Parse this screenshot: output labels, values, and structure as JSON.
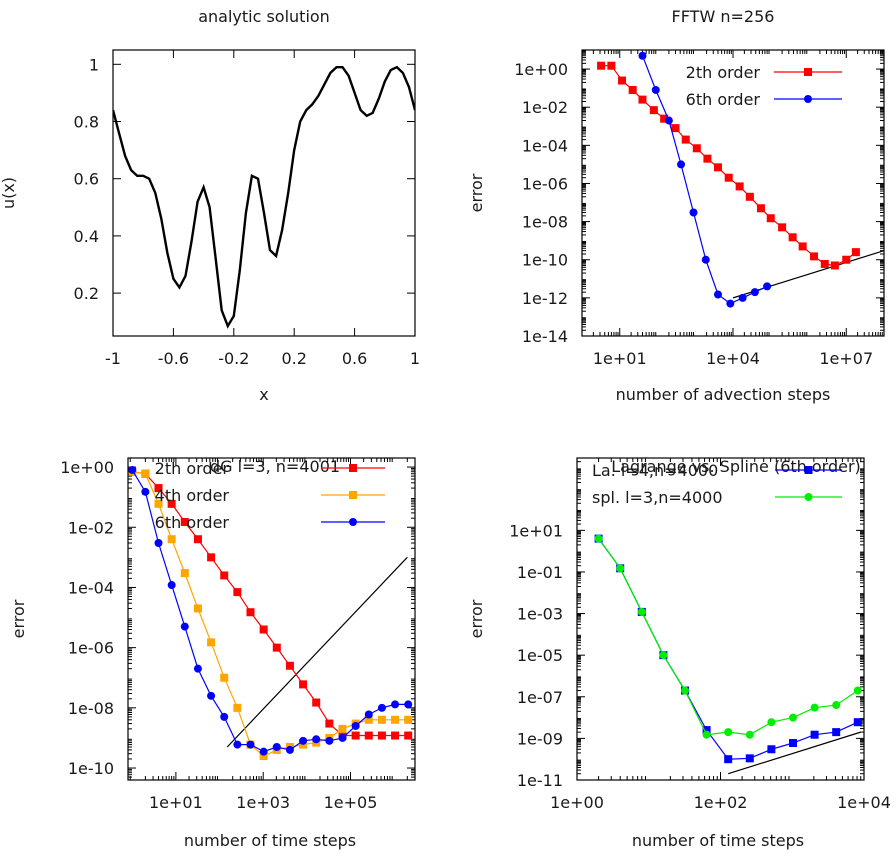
{
  "chart_data": [
    {
      "type": "line",
      "title": "analytic solution",
      "xlabel": "x",
      "ylabel": "u(x)",
      "xlim": [
        -1,
        1
      ],
      "ylim": [
        0.05,
        1.05
      ],
      "x_ticks": [
        -1,
        -0.6,
        -0.2,
        0.2,
        0.6,
        1
      ],
      "x_tick_labels": [
        "-1",
        "-0.6",
        "-0.2",
        "0.2",
        "0.6",
        "1"
      ],
      "y_ticks": [
        0.2,
        0.4,
        0.6,
        0.8,
        1
      ],
      "y_tick_labels": [
        "0.2",
        "0.4",
        "0.6",
        "0.8",
        "1"
      ],
      "series": [
        {
          "color": "#000000",
          "marker": "none",
          "x": [
            -1,
            -0.96,
            -0.92,
            -0.88,
            -0.84,
            -0.8,
            -0.76,
            -0.72,
            -0.68,
            -0.64,
            -0.6,
            -0.56,
            -0.52,
            -0.48,
            -0.44,
            -0.4,
            -0.36,
            -0.32,
            -0.28,
            -0.24,
            -0.2,
            -0.16,
            -0.12,
            -0.08,
            -0.04,
            0,
            0.04,
            0.08,
            0.12,
            0.16,
            0.2,
            0.24,
            0.28,
            0.32,
            0.36,
            0.4,
            0.44,
            0.48,
            0.52,
            0.56,
            0.6,
            0.64,
            0.68,
            0.72,
            0.76,
            0.8,
            0.84,
            0.88,
            0.92,
            0.96,
            1
          ],
          "y": [
            0.84,
            0.76,
            0.68,
            0.63,
            0.61,
            0.61,
            0.6,
            0.55,
            0.46,
            0.34,
            0.25,
            0.22,
            0.26,
            0.38,
            0.52,
            0.57,
            0.5,
            0.32,
            0.14,
            0.085,
            0.12,
            0.28,
            0.48,
            0.61,
            0.6,
            0.48,
            0.35,
            0.33,
            0.42,
            0.55,
            0.7,
            0.8,
            0.84,
            0.86,
            0.89,
            0.93,
            0.97,
            0.99,
            0.99,
            0.96,
            0.9,
            0.84,
            0.82,
            0.83,
            0.88,
            0.94,
            0.98,
            0.99,
            0.97,
            0.92,
            0.84
          ]
        }
      ]
    },
    {
      "type": "line",
      "title": "FFTW n=256",
      "xlabel": "number of advection steps",
      "ylabel": "error",
      "x_scale": "log",
      "y_scale": "log",
      "xlim": [
        1,
        100000000
      ],
      "ylim": [
        1e-14,
        10
      ],
      "x_ticks": [
        10,
        10000,
        10000000
      ],
      "x_tick_labels": [
        "1e+01",
        "1e+04",
        "1e+07"
      ],
      "y_ticks": [
        1,
        0.01,
        0.0001,
        1e-06,
        1e-08,
        1e-10,
        1e-12,
        1e-14
      ],
      "y_tick_labels": [
        "1e+00",
        "1e-02",
        "1e-04",
        "1e-06",
        "1e-08",
        "1e-10",
        "1e-12",
        "1e-14"
      ],
      "legend_position": "top-right",
      "series": [
        {
          "name": "2th order",
          "color": "#ff0000",
          "marker": "square",
          "x": [
            3.2,
            6,
            11.5,
            22,
            40,
            80,
            150,
            300,
            560,
            1100,
            2100,
            4000,
            7700,
            15000,
            28000,
            55000,
            100000,
            200000,
            380000,
            700000,
            1400000,
            2700000,
            5000000,
            10000000,
            18000000
          ],
          "y": [
            1.5,
            1.5,
            0.25,
            0.08,
            0.025,
            0.007,
            0.0025,
            0.0008,
            0.0002,
            7e-05,
            2e-05,
            7e-06,
            2e-06,
            7e-07,
            2e-07,
            5e-08,
            1.5e-08,
            5e-09,
            1.5e-09,
            5e-10,
            1.5e-10,
            6e-11,
            5e-11,
            1e-10,
            2.5e-10
          ]
        },
        {
          "name": "6th order",
          "color": "#0000ff",
          "marker": "circle",
          "x": [
            40,
            90,
            200,
            420,
            900,
            1900,
            4000,
            8500,
            18000,
            38000,
            80000
          ],
          "y": [
            5,
            0.08,
            0.002,
            1e-05,
            3e-08,
            1e-10,
            1.5e-12,
            5e-13,
            1e-12,
            2e-12,
            4e-12
          ]
        }
      ],
      "reference_line": {
        "color": "#000000",
        "x": [
          10000,
          100000000
        ],
        "y": [
          1e-12,
          3e-10
        ]
      }
    },
    {
      "type": "line",
      "title": "dG l=3, n=4001",
      "xlabel": "number of time steps",
      "ylabel": "error",
      "x_scale": "log",
      "y_scale": "log",
      "xlim": [
        0.8,
        3000000
      ],
      "ylim": [
        4e-11,
        2
      ],
      "x_ticks": [
        10,
        1000,
        100000
      ],
      "x_tick_labels": [
        "1e+01",
        "1e+03",
        "1e+05"
      ],
      "y_ticks": [
        1,
        0.01,
        0.0001,
        1e-06,
        1e-08,
        1e-10
      ],
      "y_tick_labels": [
        "1e+00",
        "1e-02",
        "1e-04",
        "1e-06",
        "1e-08",
        "1e-10"
      ],
      "legend_position": "top-right",
      "series": [
        {
          "name": "2th order",
          "color": "#ff0000",
          "marker": "square",
          "x": [
            1,
            2,
            4,
            8,
            16,
            32,
            64,
            128,
            256,
            512,
            1024,
            2048,
            4096,
            8192,
            16384,
            32768,
            65536,
            131072,
            262144,
            524288,
            1048576,
            2097152
          ],
          "y": [
            0.7,
            0.6,
            0.2,
            0.06,
            0.015,
            0.004,
            0.001,
            0.00025,
            7e-05,
            1.5e-05,
            4e-06,
            1e-06,
            2.5e-07,
            6e-08,
            1.5e-08,
            3e-09,
            1.2e-09,
            1.2e-09,
            1.2e-09,
            1.2e-09,
            1.2e-09,
            1.2e-09
          ]
        },
        {
          "name": "4th order",
          "color": "#ffa500",
          "marker": "square",
          "x": [
            1,
            2,
            4,
            8,
            16,
            32,
            64,
            128,
            256,
            512,
            1024,
            2048,
            4096,
            8192,
            16384,
            32768,
            65536,
            131072,
            262144,
            524288,
            1048576,
            2097152
          ],
          "y": [
            0.7,
            0.6,
            0.06,
            0.004,
            0.0003,
            2e-05,
            1.5e-06,
            1e-07,
            1e-08,
            6e-10,
            2.5e-10,
            4e-10,
            5e-10,
            6e-10,
            7e-10,
            1e-09,
            2e-09,
            3e-09,
            4e-09,
            4e-09,
            4e-09,
            4e-09
          ]
        },
        {
          "name": "6th order",
          "color": "#0000ff",
          "marker": "circle",
          "x": [
            1,
            2,
            4,
            8,
            16,
            32,
            64,
            128,
            256,
            512,
            1024,
            2048,
            4096,
            8192,
            16384,
            32768,
            65536,
            131072,
            262144,
            524288,
            1048576,
            2097152
          ],
          "y": [
            0.8,
            0.15,
            0.003,
            0.00012,
            5e-06,
            2e-07,
            2.5e-08,
            5e-09,
            6e-10,
            6e-10,
            3.5e-10,
            5e-10,
            4e-10,
            8e-10,
            9e-10,
            8e-10,
            1e-09,
            2.5e-09,
            6e-09,
            1e-08,
            1.3e-08,
            1.3e-08
          ]
        }
      ],
      "reference_line": {
        "color": "#000000",
        "x": [
          150,
          2000000
        ],
        "y": [
          5e-10,
          0.001
        ]
      }
    },
    {
      "type": "line",
      "title": "Lagrange vs. Spline (6th order)",
      "xlabel": "number of time steps",
      "ylabel": "error",
      "x_scale": "log",
      "y_scale": "log",
      "xlim": [
        1,
        10000
      ],
      "ylim": [
        1e-11,
        30000
      ],
      "x_ticks": [
        1,
        100,
        10000
      ],
      "x_tick_labels": [
        "1e+00",
        "1e+02",
        "1e+04"
      ],
      "y_ticks": [
        10,
        0.1,
        0.001,
        1e-05,
        1e-07,
        1e-09,
        1e-11
      ],
      "y_tick_labels": [
        "1e+01",
        "1e-01",
        "1e-03",
        "1e-05",
        "1e-07",
        "1e-09",
        "1e-11"
      ],
      "legend_position": "top-left",
      "series": [
        {
          "name": "La. l=4,n=4000",
          "color": "#0000ff",
          "marker": "square",
          "x": [
            2,
            4,
            8,
            16,
            32,
            64,
            128,
            256,
            512,
            1024,
            2048,
            4096,
            8192
          ],
          "y": [
            4,
            0.15,
            0.0012,
            1e-05,
            2e-07,
            2.5e-09,
            1e-10,
            1.1e-10,
            3e-10,
            6e-10,
            1.5e-09,
            2e-09,
            6e-09
          ]
        },
        {
          "name": "spl. l=3,n=4000",
          "color": "#00ee00",
          "marker": "circle",
          "x": [
            2,
            4,
            8,
            16,
            32,
            64,
            128,
            256,
            512,
            1024,
            2048,
            4096,
            8192
          ],
          "y": [
            4,
            0.15,
            0.0012,
            1e-05,
            2e-07,
            1.5e-09,
            2e-09,
            1.5e-09,
            6e-09,
            1e-08,
            3e-08,
            4e-08,
            2e-07
          ]
        }
      ],
      "reference_line": {
        "color": "#000000",
        "x": [
          128,
          9000
        ],
        "y": [
          2e-11,
          2e-09
        ]
      }
    }
  ]
}
